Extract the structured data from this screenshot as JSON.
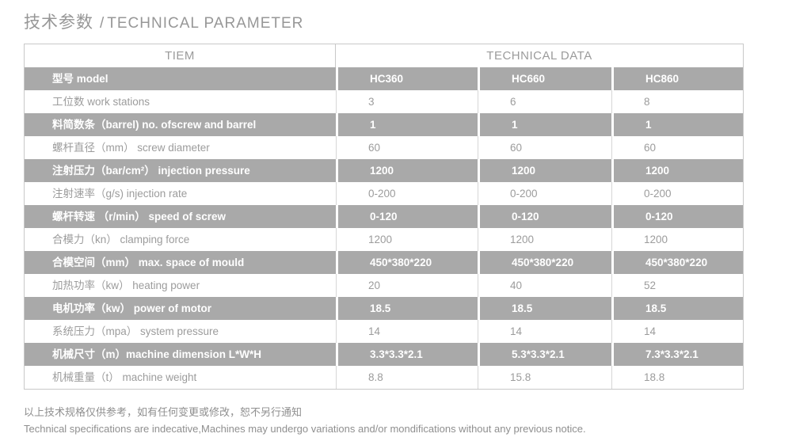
{
  "title": {
    "zh": "技术参数",
    "divider": "/",
    "en": "TECHNICAL PARAMETER"
  },
  "table": {
    "header": {
      "item_label": "TIEM",
      "data_label": "TECHNICAL DATA"
    },
    "rows": [
      {
        "label": "型号  model",
        "values": [
          "HC360",
          "HC660",
          "HC860"
        ]
      },
      {
        "label": "工位数  work stations",
        "values": [
          "3",
          "6",
          "8"
        ]
      },
      {
        "label": "料简数条（barrel)  no. ofscrew and barrel",
        "values": [
          "1",
          "1",
          "1"
        ]
      },
      {
        "label": "螺杆直径（mm）  screw diameter",
        "values": [
          "60",
          "60",
          "60"
        ]
      },
      {
        "label": "注射压力（bar/cm²）  injection pressure",
        "values": [
          "1200",
          "1200",
          "1200"
        ]
      },
      {
        "label": "注射速率（g/s)  injection rate",
        "values": [
          "0-200",
          "0-200",
          "0-200"
        ]
      },
      {
        "label": "螺杆转速 （r/min）  speed of screw",
        "values": [
          "0-120",
          "0-120",
          "0-120"
        ]
      },
      {
        "label": "合模力（kn）  clamping force",
        "values": [
          "1200",
          "1200",
          "1200"
        ]
      },
      {
        "label": "合模空间（mm）  max. space of mould",
        "values": [
          "450*380*220",
          "450*380*220",
          "450*380*220"
        ]
      },
      {
        "label": "加热功率（kw）  heating power",
        "values": [
          "20",
          "40",
          "52"
        ]
      },
      {
        "label": "电机功率（kw）  power of motor",
        "values": [
          "18.5",
          "18.5",
          "18.5"
        ]
      },
      {
        "label": "系统压力（mpa）  system pressure",
        "values": [
          "14",
          "14",
          "14"
        ]
      },
      {
        "label": "机械尺寸（m）machine dimension L*W*H",
        "values": [
          "3.3*3.3*2.1",
          "5.3*3.3*2.1",
          "7.3*3.3*2.1"
        ]
      },
      {
        "label": "机械重量（t）  machine weight",
        "values": [
          "8.8",
          "15.8",
          "18.8"
        ]
      }
    ]
  },
  "footer": {
    "line1": "以上技术规格仅供参考，如有任何变更或修改，恕不另行通知",
    "line2": "Technical specifications are indecative,Machines may undergo variations and/or mondifications without any previous notice."
  },
  "colors": {
    "shaded_row_bg": "#a9a9a9",
    "muted_text": "#9c9c9c",
    "border": "#c8c8c8"
  }
}
